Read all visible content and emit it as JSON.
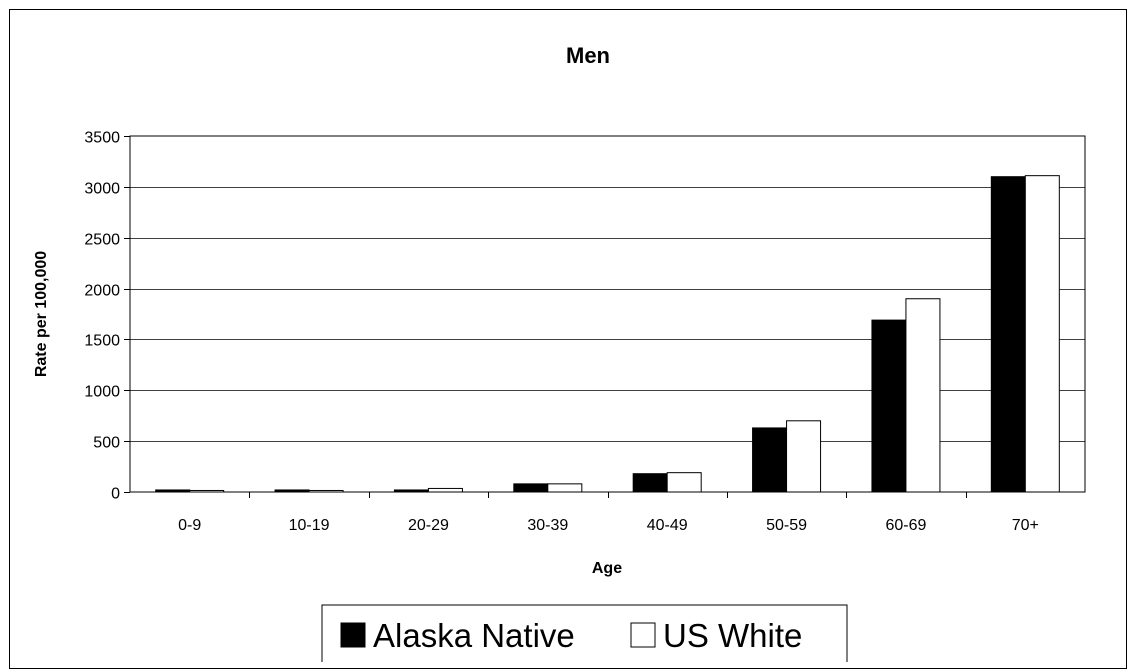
{
  "chart_data": {
    "type": "bar",
    "title": "Men",
    "xlabel": "Age",
    "ylabel": "Rate per 100,000",
    "categories": [
      "0-9",
      "10-19",
      "20-29",
      "30-39",
      "40-49",
      "50-59",
      "60-69",
      "70+"
    ],
    "series": [
      {
        "name": "Alaska Native",
        "color": "#000000",
        "values": [
          20,
          20,
          20,
          80,
          180,
          630,
          1690,
          3100
        ]
      },
      {
        "name": "US White",
        "color": "#ffffff",
        "values": [
          15,
          15,
          35,
          80,
          190,
          700,
          1900,
          3110
        ]
      }
    ],
    "ylim": [
      0,
      3500
    ],
    "yticks": [
      0,
      500,
      1000,
      1500,
      2000,
      2500,
      3000,
      3500
    ],
    "grid": true,
    "legend_position": "bottom"
  }
}
